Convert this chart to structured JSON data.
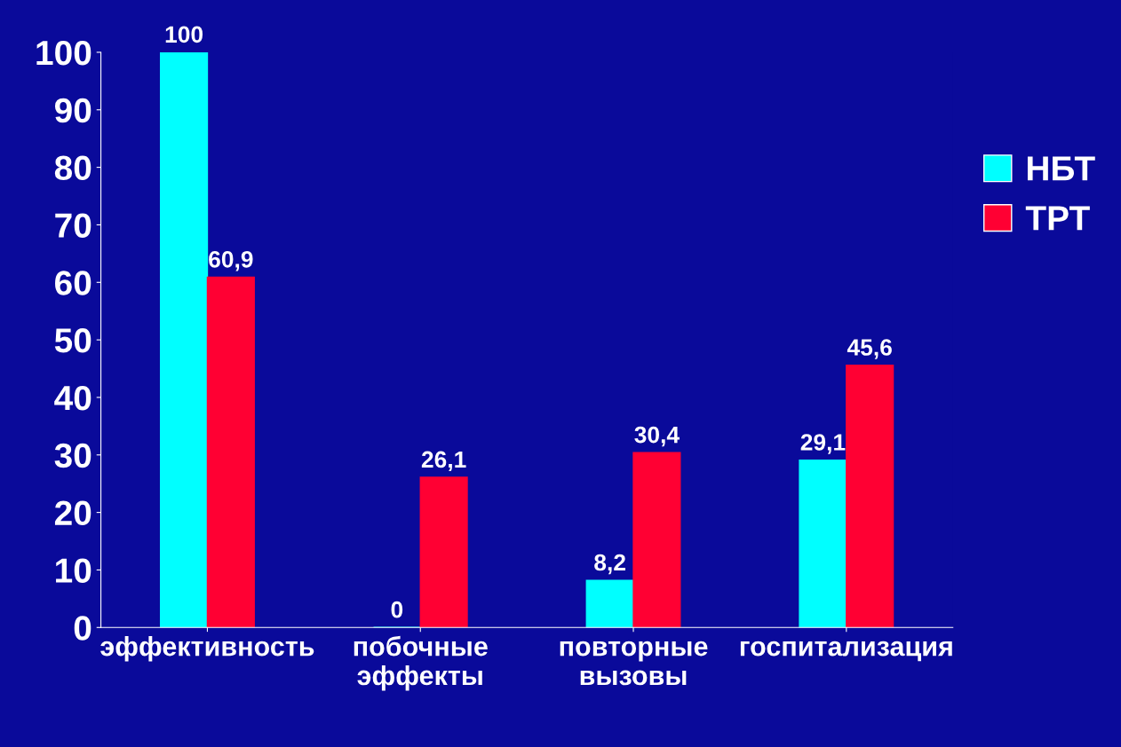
{
  "chart_data": {
    "type": "bar",
    "categories": [
      "эффективность",
      "побочные эффекты",
      "повторные вызовы",
      "госпитализация"
    ],
    "series": [
      {
        "name": "НБТ",
        "color": "#00ffff",
        "values": [
          100,
          0,
          8.2,
          29.1
        ],
        "value_labels": [
          "100",
          "0",
          "8,2",
          "29,1"
        ]
      },
      {
        "name": "ТРТ",
        "color": "#ff0033",
        "values": [
          60.9,
          26.1,
          30.4,
          45.6
        ],
        "value_labels": [
          "60,9",
          "26,1",
          "30,4",
          "45,6"
        ]
      }
    ],
    "ylim": [
      0,
      100
    ],
    "yticks": [
      0,
      10,
      20,
      30,
      40,
      50,
      60,
      70,
      80,
      90,
      100
    ],
    "grid": false,
    "legend": "right"
  }
}
